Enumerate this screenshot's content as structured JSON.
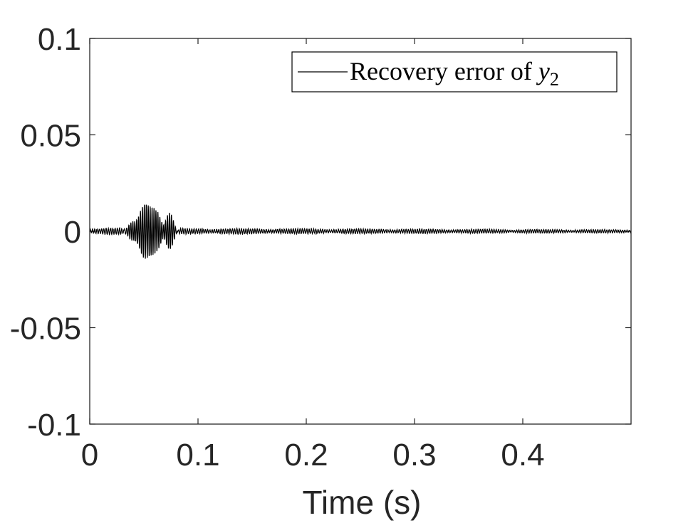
{
  "chart_data": {
    "type": "line",
    "title": "",
    "xlabel": "Time (s)",
    "ylabel": "",
    "xlim": [
      0,
      0.5
    ],
    "ylim": [
      -0.1,
      0.1
    ],
    "x_ticks": [
      0,
      0.1,
      0.2,
      0.3,
      0.4
    ],
    "x_tick_labels": [
      "0",
      "0.1",
      "0.2",
      "0.3",
      "0.4"
    ],
    "y_ticks": [
      -0.1,
      -0.05,
      0,
      0.05,
      0.1
    ],
    "y_tick_labels": [
      "-0.1",
      "-0.05",
      "0",
      "0.05",
      "0.1"
    ],
    "grid": false,
    "legend": {
      "position": "top-right",
      "entries": [
        {
          "text": "Recovery error of ",
          "var": "y",
          "sub": "2"
        }
      ]
    },
    "series": [
      {
        "name": "Recovery error of y2",
        "color": "#000000",
        "description": "oscillating error signal",
        "burst": {
          "t_start": 0.025,
          "t_end": 0.085,
          "peak_time": 0.054,
          "peak_amplitude": 0.014,
          "frequency_hz": 560
        },
        "residual": {
          "amplitude_start": 0.0012,
          "amplitude_end": 0.0006,
          "frequency_hz": 480
        }
      }
    ]
  }
}
